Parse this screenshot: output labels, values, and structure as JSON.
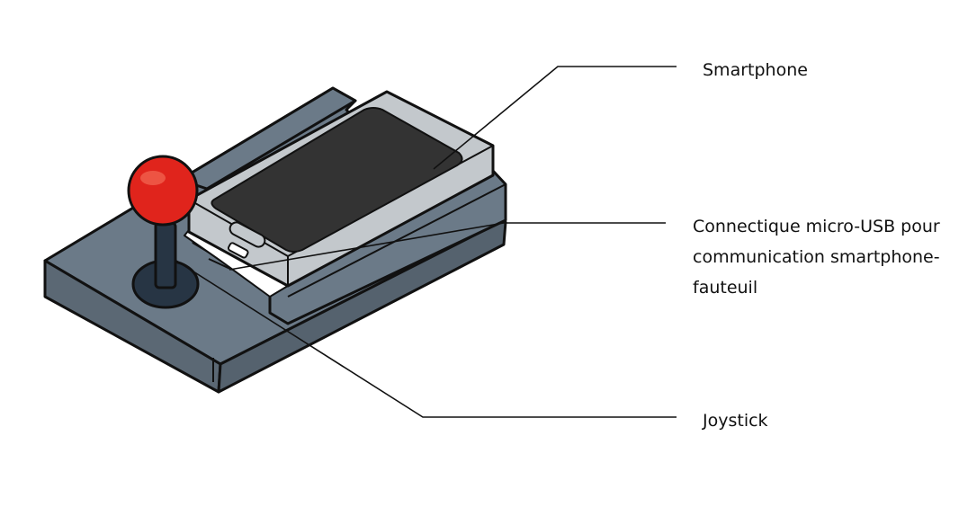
{
  "labels": {
    "smartphone": "Smartphone",
    "usb_line1": "Connectique micro-USB pour",
    "usb_line2": "communication smartphone-",
    "usb_line3": "fauteuil",
    "joystick": "Joystick"
  },
  "colors": {
    "base": "#6b7a88",
    "base_dark": "#55626e",
    "outline": "#111111",
    "phone_body": "#c3c8cc",
    "phone_screen": "#333333",
    "knob": "#e0241c",
    "stick": "#273544"
  }
}
